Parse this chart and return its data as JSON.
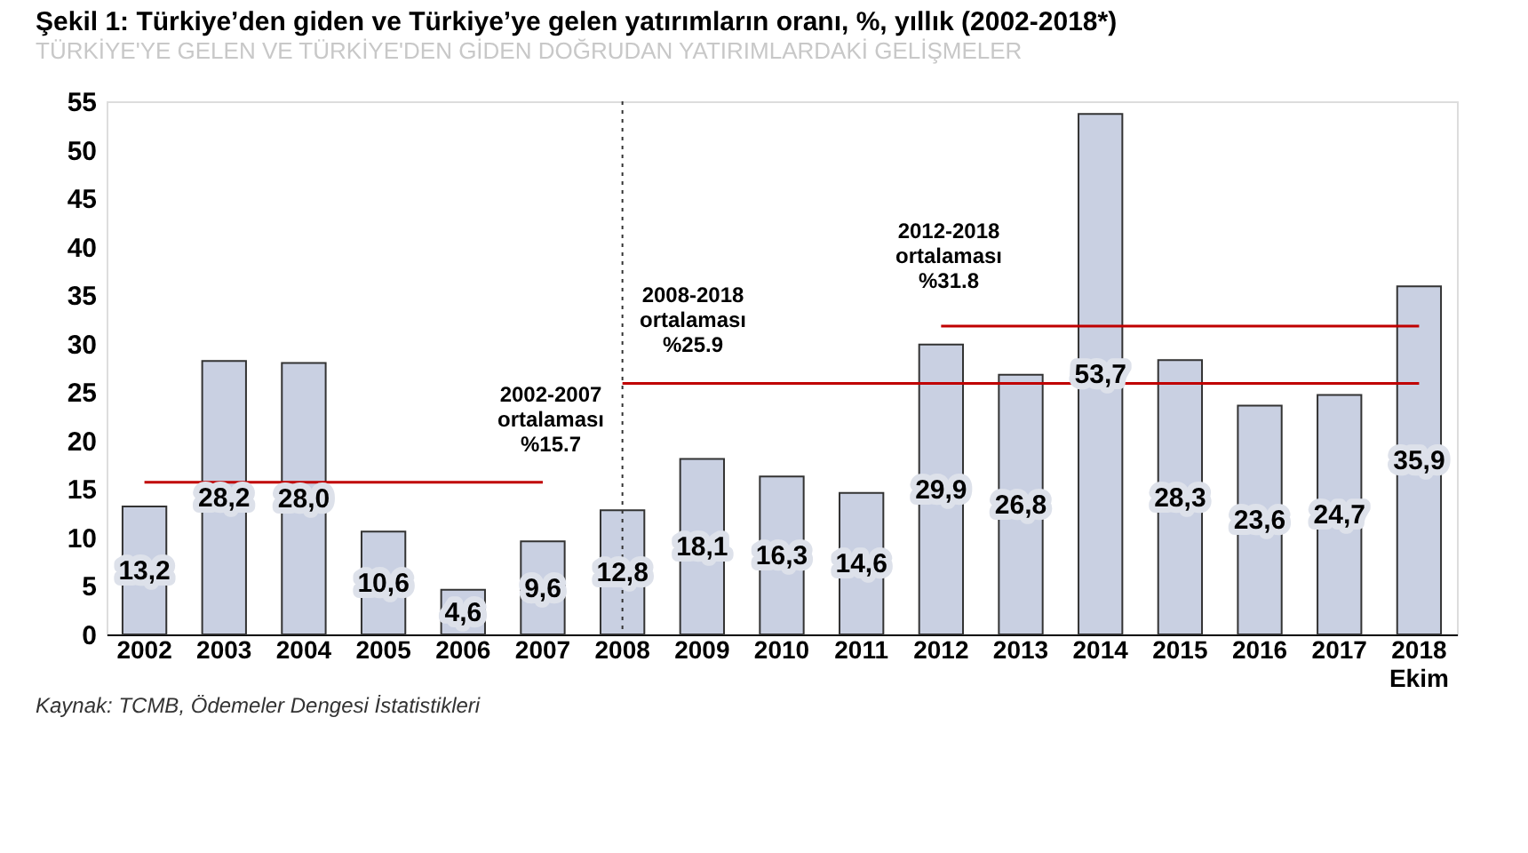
{
  "chart_data": {
    "type": "bar",
    "title": "Şekil 1: Türkiye’den giden ve Türkiye’ye gelen yatırımların oranı, %, yıllık (2002-2018*)",
    "subtitle": "TÜRKİYE'YE GELEN VE TÜRKİYE'DEN GİDEN DOĞRUDAN YATIRIMLARDAKİ GELİŞMELER",
    "categories": [
      "2002",
      "2003",
      "2004",
      "2005",
      "2006",
      "2007",
      "2008",
      "2009",
      "2010",
      "2011",
      "2012",
      "2013",
      "2014",
      "2015",
      "2016",
      "2017",
      "2018\nEkim"
    ],
    "series": [
      {
        "color": "#c9d0e2",
        "values": [
          13.2,
          28.2,
          28.0,
          10.6,
          4.6,
          9.6,
          12.8,
          18.1,
          16.3,
          14.6,
          29.9,
          26.8,
          53.7,
          28.3,
          23.6,
          24.7,
          35.9
        ],
        "value_labels": [
          "13,2",
          "28,2",
          "28,0",
          "10,6",
          "4,6",
          "9,6",
          "12,8",
          "18,1",
          "16,3",
          "14,6",
          "29,9",
          "26,8",
          "53,7",
          "28,3",
          "23,6",
          "24,7",
          "35,9"
        ]
      },
      {
        "type": "line",
        "color": "#c00000",
        "values": [
          15.7,
          15.7,
          15.7,
          15.7,
          15.7,
          15.7,
          null,
          null,
          null,
          null,
          null,
          null,
          null,
          null,
          null,
          null,
          null
        ]
      },
      {
        "type": "line",
        "color": "#c00000",
        "values": [
          null,
          null,
          null,
          null,
          null,
          null,
          25.9,
          25.9,
          25.9,
          25.9,
          25.9,
          25.9,
          25.9,
          25.9,
          25.9,
          25.9,
          25.9
        ]
      },
      {
        "type": "line",
        "color": "#c00000",
        "values": [
          null,
          null,
          null,
          null,
          null,
          null,
          null,
          null,
          null,
          null,
          31.8,
          31.8,
          31.8,
          31.8,
          31.8,
          31.8,
          31.8
        ]
      }
    ],
    "ref_lines": [
      {
        "axis": "x",
        "value": "2008",
        "color": "#333333",
        "line_style": "dotted"
      }
    ],
    "ylim": [
      0,
      55
    ],
    "yticks": [
      0,
      5,
      10,
      15,
      20,
      25,
      30,
      35,
      40,
      45,
      50,
      55
    ],
    "grid": false,
    "legend": false,
    "annotations": [
      "2002-2007\nortalaması\n%15.7",
      "2008-2018\nortalaması\n%25.9",
      "2012-2018\nortalaması\n%31.8",
      "Kaynak: TCMB, Ödemeler Dengesi İstatistikleri"
    ]
  }
}
